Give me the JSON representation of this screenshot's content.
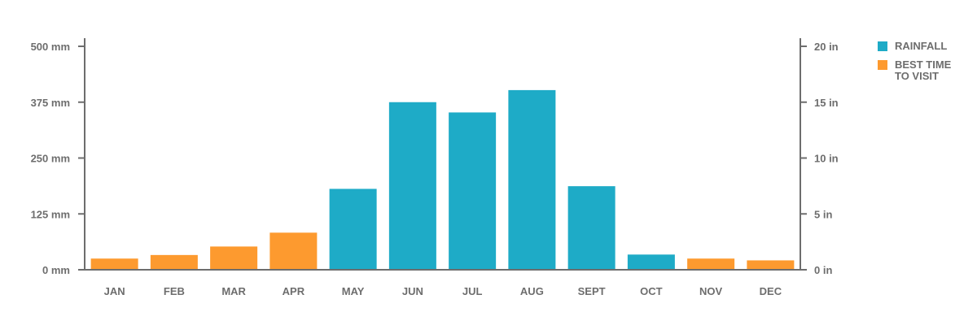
{
  "chart_data": {
    "type": "bar",
    "categories": [
      "JAN",
      "FEB",
      "MAR",
      "APR",
      "MAY",
      "JUN",
      "JUL",
      "AUG",
      "SEPT",
      "OCT",
      "NOV",
      "DEC"
    ],
    "values": [
      25,
      33,
      52,
      83,
      181,
      375,
      352,
      402,
      187,
      34,
      25,
      21
    ],
    "value_units": "mm",
    "series": [
      {
        "name": "RAINFALL",
        "color": "#1eabc7",
        "months": [
          "MAY",
          "JUN",
          "JUL",
          "AUG",
          "SEPT",
          "OCT"
        ]
      },
      {
        "name": "BEST TIME TO VISIT",
        "color": "#fd9a2f",
        "months": [
          "JAN",
          "FEB",
          "MAR",
          "APR",
          "NOV",
          "DEC"
        ]
      }
    ],
    "ylim": [
      0,
      500
    ],
    "left_axis_ticks": [
      "0 mm",
      "125 mm",
      "250 mm",
      "375 mm",
      "500 mm"
    ],
    "left_axis_tick_values": [
      0,
      125,
      250,
      375,
      500
    ],
    "right_axis_ticks": [
      "0 in",
      "5 in",
      "10 in",
      "15 in",
      "20 in"
    ],
    "right_axis_tick_values": [
      0,
      5,
      10,
      15,
      20
    ],
    "grid": false,
    "legend_position": "top-right",
    "legend": [
      {
        "label": "RAINFALL",
        "color": "#1eabc7"
      },
      {
        "label": "BEST TIME TO VISIT",
        "color": "#fd9a2f"
      }
    ],
    "axis_color": "#6d6d6d"
  }
}
